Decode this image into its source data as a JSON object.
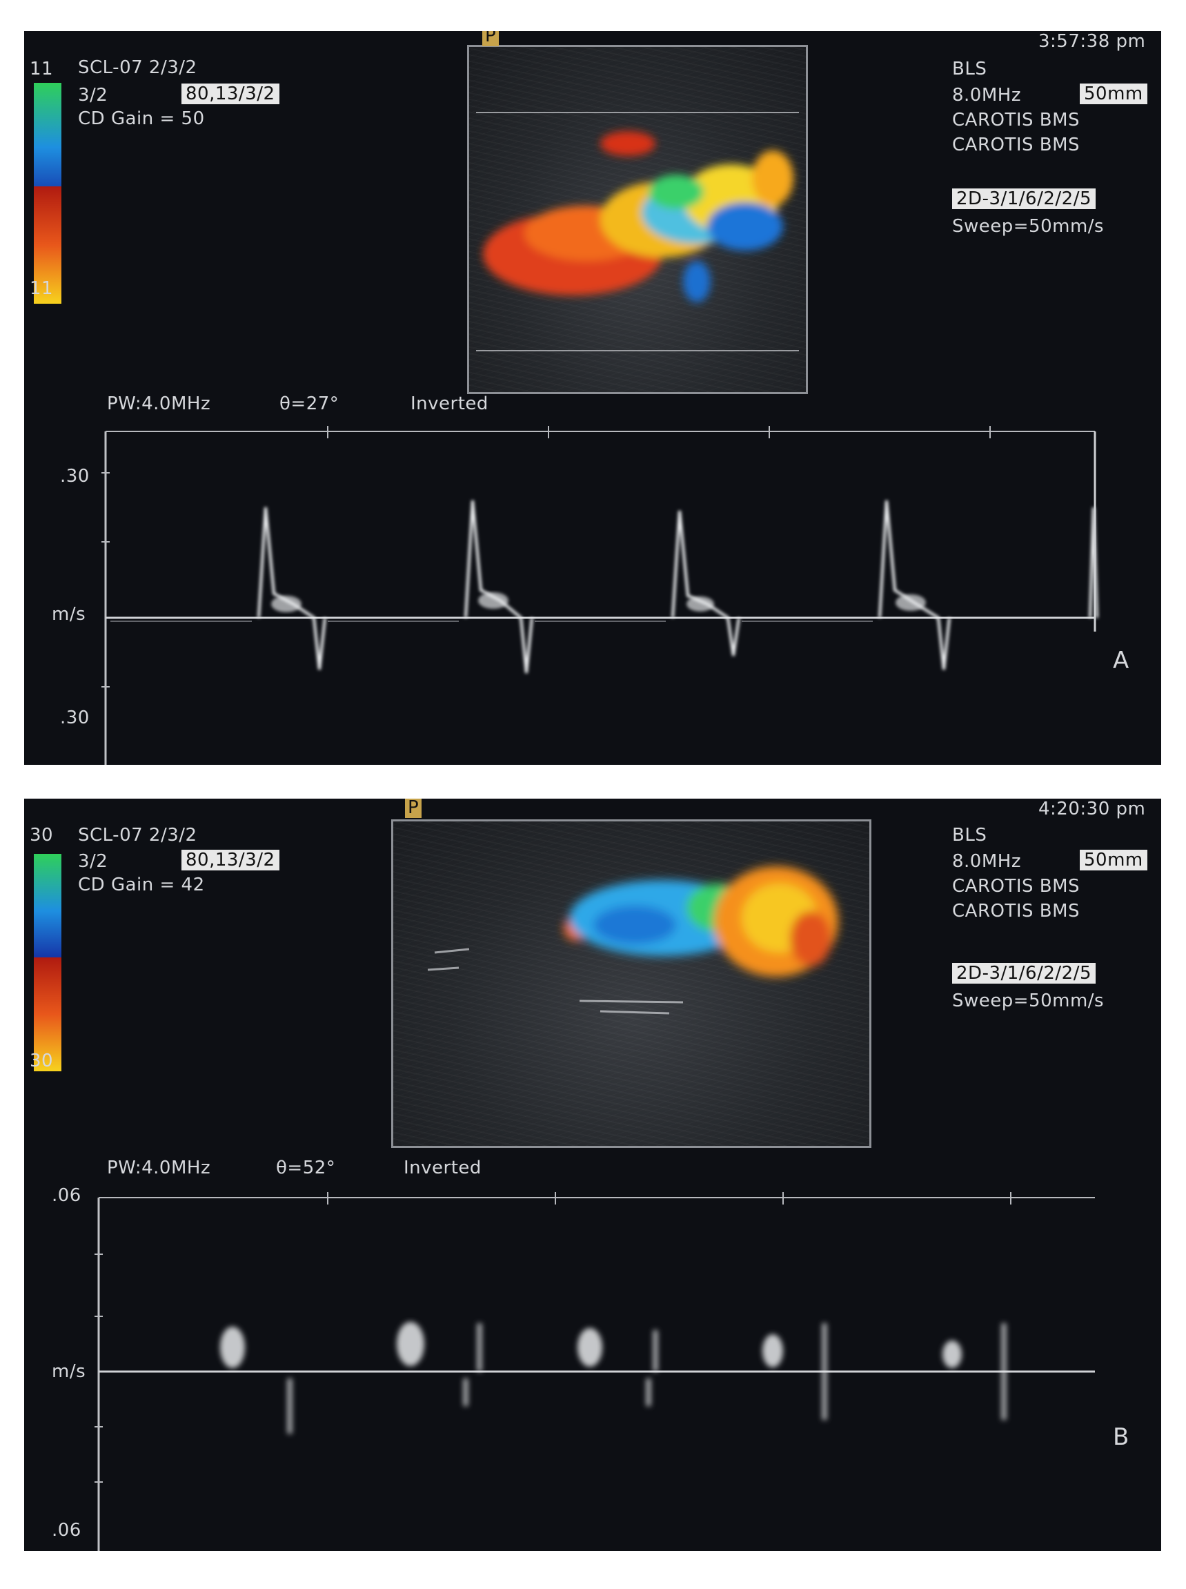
{
  "panelA": {
    "time": "3:57:38 pm",
    "scale_top": "11",
    "scale_bottom": "11",
    "header_line1": "SCL-07 2/3/2",
    "header_line2_left": "3/2",
    "header_line2_box": "80,13/3/2",
    "header_line3": "CD Gain = 50",
    "right_line1": "BLS",
    "right_line2": "8.0MHz",
    "right_line2_box": "50mm",
    "right_line3": "CAROTIS BMS",
    "right_line4": "CAROTIS BMS",
    "right_box": "2D-3/1/6/2/2/5",
    "right_sweep": "Sweep=50mm/s",
    "doppler_pw": "PW:4.0MHz",
    "doppler_angle": "θ=27°",
    "doppler_inverted": "Inverted",
    "axis_top": ".30",
    "axis_mid": "m/s",
    "axis_bottom": ".30",
    "panel_letter": "A",
    "marker": "P",
    "colorbar_top_colors": [
      "#2fcf5a",
      "#1e8fe0",
      "#1636a8"
    ],
    "colorbar_bottom_colors": [
      "#b01b10",
      "#e8571b",
      "#f7d21e"
    ]
  },
  "panelB": {
    "time": "4:20:30 pm",
    "scale_top": "30",
    "scale_bottom": "30",
    "header_line1": "SCL-07 2/3/2",
    "header_line2_left": "3/2",
    "header_line2_box": "80,13/3/2",
    "header_line3": "CD Gain = 42",
    "right_line1": "BLS",
    "right_line2": "8.0MHz",
    "right_line2_box": "50mm",
    "right_line3": "CAROTIS BMS",
    "right_line4": "CAROTIS BMS",
    "right_box": "2D-3/1/6/2/2/5",
    "right_sweep": "Sweep=50mm/s",
    "doppler_pw": "PW:4.0MHz",
    "doppler_angle": "θ=52°",
    "doppler_inverted": "Inverted",
    "axis_top": ".06",
    "axis_mid": "m/s",
    "axis_bottom": ".06",
    "panel_letter": "B",
    "marker": "P"
  }
}
